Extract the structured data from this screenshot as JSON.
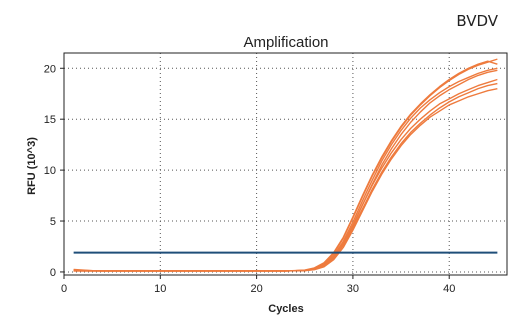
{
  "corner_label": "BVDV",
  "chart_data": {
    "type": "line",
    "title": "Amplification",
    "xlabel": "Cycles",
    "ylabel": "RFU (10^3)",
    "xlim": [
      0,
      46
    ],
    "ylim": [
      -0.3,
      21.5
    ],
    "x_ticks": [
      0,
      10,
      20,
      30,
      40
    ],
    "y_ticks": [
      0,
      5,
      10,
      15,
      20
    ],
    "grid": true,
    "threshold": {
      "y": 1.9,
      "x_start": 1,
      "x_end": 45,
      "color": "#1f4e79"
    },
    "series_color": "#ee7b3e",
    "x": [
      1,
      2,
      3,
      4,
      5,
      6,
      7,
      8,
      9,
      10,
      11,
      12,
      13,
      14,
      15,
      16,
      17,
      18,
      19,
      20,
      21,
      22,
      23,
      24,
      25,
      26,
      27,
      28,
      29,
      30,
      31,
      32,
      33,
      34,
      35,
      36,
      37,
      38,
      39,
      40,
      41,
      42,
      43,
      44,
      45
    ],
    "series": [
      {
        "values": [
          0.15,
          0.12,
          0.1,
          0.1,
          0.1,
          0.1,
          0.1,
          0.1,
          0.1,
          0.1,
          0.1,
          0.1,
          0.1,
          0.1,
          0.1,
          0.1,
          0.1,
          0.1,
          0.1,
          0.1,
          0.1,
          0.1,
          0.1,
          0.12,
          0.15,
          0.3,
          0.7,
          1.6,
          3.0,
          4.9,
          7.0,
          9.0,
          10.9,
          12.5,
          13.9,
          15.1,
          16.1,
          16.9,
          17.6,
          18.2,
          18.7,
          19.1,
          19.5,
          19.8,
          20.0
        ]
      },
      {
        "values": [
          0.2,
          0.15,
          0.12,
          0.1,
          0.1,
          0.1,
          0.1,
          0.1,
          0.1,
          0.1,
          0.1,
          0.1,
          0.1,
          0.1,
          0.1,
          0.1,
          0.1,
          0.1,
          0.1,
          0.1,
          0.1,
          0.1,
          0.1,
          0.12,
          0.14,
          0.25,
          0.6,
          1.4,
          2.7,
          4.5,
          6.6,
          8.6,
          10.5,
          12.1,
          13.5,
          14.7,
          15.7,
          16.6,
          17.3,
          17.9,
          18.4,
          18.9,
          19.3,
          19.6,
          19.8
        ]
      },
      {
        "values": [
          0.1,
          0.1,
          0.1,
          0.1,
          0.1,
          0.1,
          0.1,
          0.1,
          0.1,
          0.1,
          0.1,
          0.1,
          0.1,
          0.1,
          0.1,
          0.1,
          0.1,
          0.1,
          0.1,
          0.1,
          0.1,
          0.1,
          0.1,
          0.12,
          0.16,
          0.35,
          0.8,
          1.8,
          3.3,
          5.3,
          7.4,
          9.4,
          11.2,
          12.8,
          14.2,
          15.4,
          16.4,
          17.3,
          18.1,
          18.8,
          19.4,
          19.9,
          20.3,
          20.6,
          20.9
        ]
      },
      {
        "values": [
          0.25,
          0.18,
          0.12,
          0.1,
          0.1,
          0.1,
          0.1,
          0.1,
          0.1,
          0.1,
          0.1,
          0.1,
          0.1,
          0.1,
          0.1,
          0.1,
          0.1,
          0.1,
          0.1,
          0.1,
          0.1,
          0.1,
          0.1,
          0.11,
          0.13,
          0.22,
          0.5,
          1.2,
          2.4,
          4.1,
          6.0,
          7.9,
          9.6,
          11.1,
          12.4,
          13.5,
          14.4,
          15.2,
          15.8,
          16.4,
          16.8,
          17.2,
          17.5,
          17.8,
          18.0
        ]
      },
      {
        "values": [
          0.12,
          0.1,
          0.1,
          0.1,
          0.1,
          0.1,
          0.1,
          0.1,
          0.1,
          0.1,
          0.1,
          0.1,
          0.1,
          0.1,
          0.1,
          0.1,
          0.1,
          0.1,
          0.1,
          0.1,
          0.1,
          0.1,
          0.1,
          0.12,
          0.15,
          0.28,
          0.65,
          1.5,
          2.8,
          4.6,
          6.6,
          8.5,
          10.2,
          11.7,
          13.0,
          14.1,
          15.0,
          15.8,
          16.5,
          17.0,
          17.5,
          17.9,
          18.3,
          18.6,
          18.9
        ]
      },
      {
        "values": [
          0.18,
          0.14,
          0.11,
          0.1,
          0.1,
          0.1,
          0.1,
          0.1,
          0.1,
          0.1,
          0.1,
          0.1,
          0.1,
          0.1,
          0.1,
          0.1,
          0.1,
          0.1,
          0.1,
          0.1,
          0.1,
          0.1,
          0.1,
          0.12,
          0.14,
          0.26,
          0.58,
          1.35,
          2.6,
          4.3,
          6.2,
          8.1,
          9.8,
          11.3,
          12.6,
          13.7,
          14.6,
          15.4,
          16.1,
          16.7,
          17.2,
          17.6,
          18.0,
          18.3,
          18.5
        ]
      },
      {
        "values": [
          0.1,
          0.1,
          0.1,
          0.1,
          0.1,
          0.1,
          0.1,
          0.1,
          0.1,
          0.1,
          0.1,
          0.1,
          0.1,
          0.1,
          0.1,
          0.1,
          0.1,
          0.1,
          0.1,
          0.1,
          0.1,
          0.1,
          0.1,
          0.13,
          0.18,
          0.4,
          0.9,
          1.9,
          3.4,
          5.4,
          7.5,
          9.5,
          11.3,
          12.9,
          14.3,
          15.5,
          16.5,
          17.4,
          18.2,
          18.9,
          19.5,
          20.0,
          20.4,
          20.7,
          20.4
        ]
      }
    ]
  }
}
